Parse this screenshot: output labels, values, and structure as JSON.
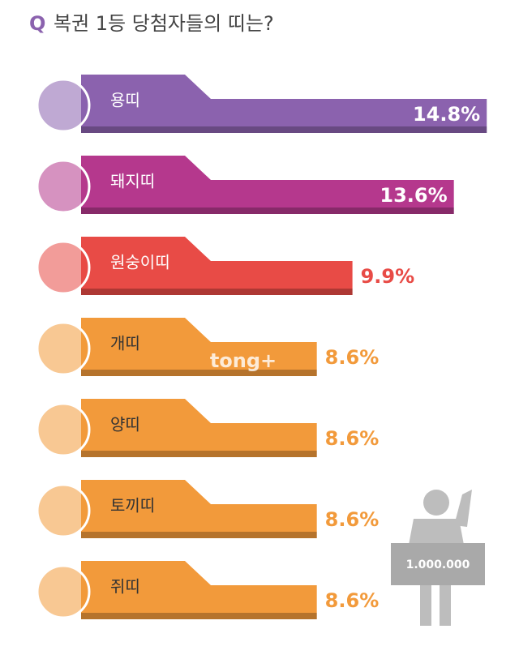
{
  "chart_data": {
    "type": "bar",
    "orientation": "horizontal",
    "title_prefix": "Q",
    "title": "복권 1등 당첨자들의 띠는?",
    "categories": [
      "용띠",
      "돼지띠",
      "원숭이띠",
      "개띠",
      "양띠",
      "토끼띠",
      "쥐띠"
    ],
    "values": [
      14.8,
      13.6,
      9.9,
      8.6,
      8.6,
      8.6,
      8.6
    ],
    "value_labels": [
      "14.8%",
      "13.6%",
      "9.9%",
      "8.6%",
      "8.6%",
      "8.6%",
      "8.6%"
    ],
    "colors": [
      "#8b62ae",
      "#b5388d",
      "#e84b46",
      "#f29a3b",
      "#f29a3b",
      "#f29a3b",
      "#f29a3b"
    ],
    "sign_text": "1.000.000",
    "watermark": "tong+"
  }
}
